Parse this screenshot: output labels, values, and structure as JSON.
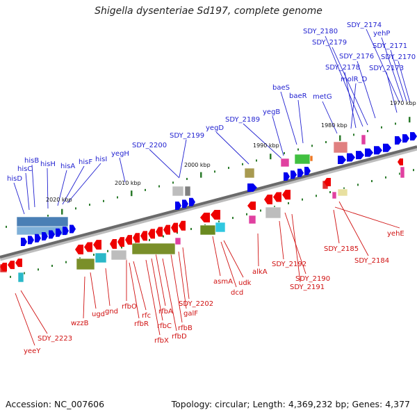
{
  "title": "Shigella dysenteriae Sd197, complete genome",
  "footer": {
    "accession": "Accession: NC_007606",
    "summary": "Topology: circular; Length: 4,369,232 bp; Genes: 4,377"
  },
  "colors": {
    "upper_label": "#1f1fd0",
    "lower_label": "#d01010",
    "arrow_blue": "#0000ee",
    "arrow_red": "#ee0000",
    "axis": "#6a6a6a",
    "tick": "#2a7a2a"
  },
  "scale_labels": [
    "1970 kbp",
    "1980 kbp",
    "1990 kbp",
    "2000 kbp",
    "2010 kbp",
    "2020 kbp"
  ],
  "upper_genes": [
    "SDY_2174",
    "yehP",
    "SDY_2180",
    "SDY_2179",
    "SDY_2171",
    "SDY_2176",
    "SDY_2170",
    "SDY_2178",
    "SDY_2173",
    "molR_D",
    "baeS",
    "baeR",
    "metG",
    "yegB",
    "SDY_2189",
    "yegD",
    "SDY_2199",
    "SDY_2200",
    "yegH",
    "hisB",
    "hisC",
    "hisH",
    "hisA",
    "hisF",
    "hisI",
    "hisD"
  ],
  "lower_genes": [
    "yehE",
    "SDY_2185",
    "SDY_2184",
    "alkA",
    "SDY_2192",
    "SDY_2190",
    "SDY_2191",
    "asmA",
    "udk",
    "dcd",
    "SDY_2202",
    "galF",
    "rfbA",
    "rfbB",
    "rfbD",
    "rfbC",
    "rfbX",
    "rfbO",
    "rfc",
    "rfbR",
    "gnd",
    "ugd",
    "wzzB",
    "SDY_2223",
    "yeeY"
  ]
}
